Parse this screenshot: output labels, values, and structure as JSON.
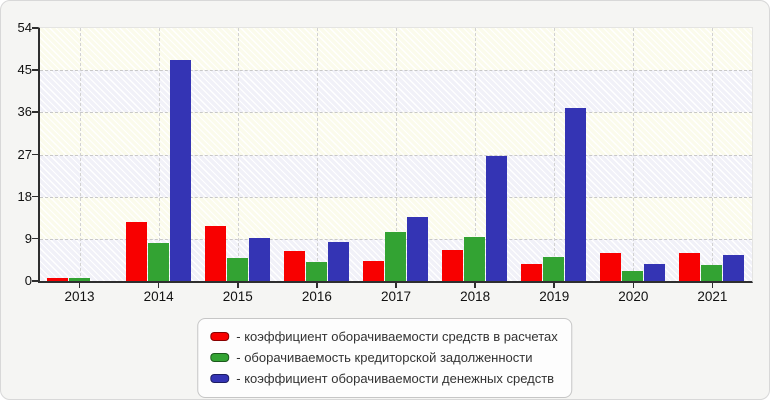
{
  "card": {
    "background": "#f5f5f3"
  },
  "chart_data": {
    "type": "bar",
    "title": "",
    "xlabel": "",
    "ylabel": "",
    "categories": [
      "2013",
      "2014",
      "2015",
      "2016",
      "2017",
      "2018",
      "2019",
      "2020",
      "2021"
    ],
    "series": [
      {
        "name": "коэффициент оборачиваемости средств в расчетах",
        "color": "#f80000",
        "values": [
          0.6,
          12.5,
          11.8,
          6.5,
          4.3,
          6.6,
          3.7,
          6.0,
          5.9
        ]
      },
      {
        "name": "оборачиваемость кредиторской задолженности",
        "color": "#33a333",
        "values": [
          0.6,
          8.1,
          5.0,
          4.1,
          10.5,
          9.4,
          5.1,
          2.2,
          3.5
        ]
      },
      {
        "name": "коэффициент оборачиваемости денежных средств",
        "color": "#3434b4",
        "values": [
          0,
          47.2,
          9.1,
          8.4,
          13.7,
          26.7,
          37.0,
          3.7,
          5.6
        ]
      }
    ],
    "ylim": [
      0,
      54
    ],
    "yticks": [
      0,
      9,
      18,
      27,
      36,
      45,
      54
    ],
    "grid": "dashed horizontal gridlines at every 9, dashed vertical gridline at each category center",
    "legend_position": "bottom-center"
  },
  "legend": {
    "items": [
      {
        "label": "- коэффициент оборачиваемости средств в расчетах",
        "color": "#f80000"
      },
      {
        "label": "- оборачиваемость кредиторской задолженности",
        "color": "#33a333"
      },
      {
        "label": "- коэффициент оборачиваемости денежных средств",
        "color": "#3434b4"
      }
    ]
  }
}
